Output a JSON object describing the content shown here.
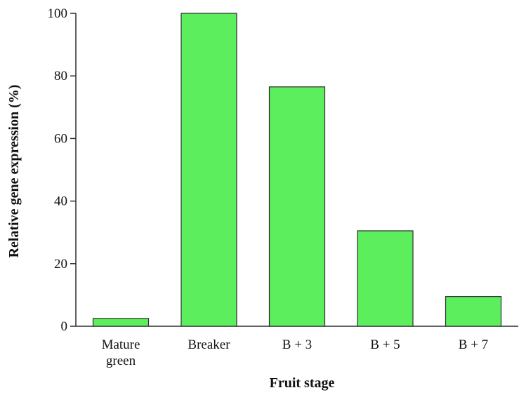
{
  "chart_data": {
    "type": "bar",
    "categories": [
      [
        "Mature",
        "green"
      ],
      [
        "Breaker"
      ],
      [
        "B + 3"
      ],
      [
        "B + 5"
      ],
      [
        "B + 7"
      ]
    ],
    "values": [
      2.5,
      100,
      76.5,
      30.5,
      9.5
    ],
    "title": "",
    "xlabel": "Fruit stage",
    "ylabel": "Relative gene expression (%)",
    "ylim": [
      0,
      100
    ],
    "yticks": [
      "0",
      "20",
      "40",
      "60",
      "80",
      "100"
    ],
    "grid": false,
    "legend": "none",
    "colors": {
      "bar_fill": "#5cee5c",
      "bar_stroke": "#2e2e2e",
      "axis": "#2e2e2e"
    }
  }
}
